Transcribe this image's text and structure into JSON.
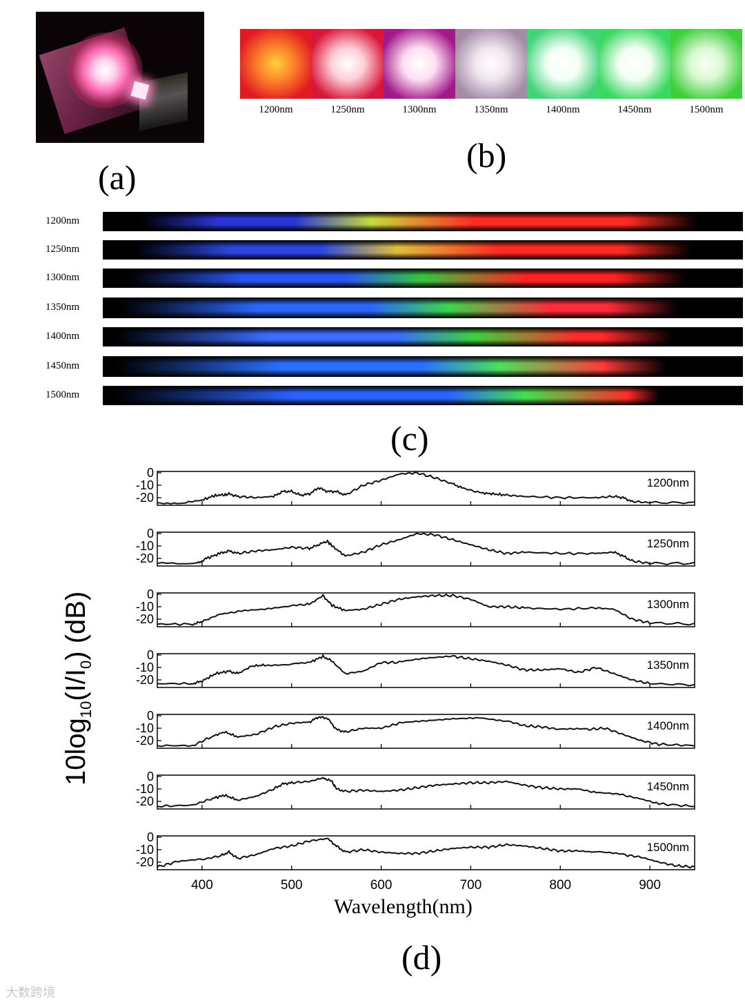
{
  "panel_labels": {
    "a": "(a)",
    "b": "(b)",
    "c": "(c)",
    "d": "(d)"
  },
  "panel_b": {
    "spots": [
      {
        "label": "1200nm",
        "core": "#ffd23a",
        "mid": "#ff8a2a",
        "edge": "#e01a22"
      },
      {
        "label": "1250nm",
        "core": "#ffffff",
        "mid": "#ffd0d8",
        "edge": "#d8163a"
      },
      {
        "label": "1300nm",
        "core": "#ffffff",
        "mid": "#ffe0f2",
        "edge": "#a21a8a"
      },
      {
        "label": "1350nm",
        "core": "#ffffff",
        "mid": "#f1e6ee",
        "edge": "#a48ca8"
      },
      {
        "label": "1400nm",
        "core": "#ffffff",
        "mid": "#f3fff6",
        "edge": "#43d479"
      },
      {
        "label": "1450nm",
        "core": "#ffffff",
        "mid": "#f1fff2",
        "edge": "#3bd861"
      },
      {
        "label": "1500nm",
        "core": "#fafff6",
        "mid": "#d9f8d3",
        "edge": "#3fcf3c"
      }
    ]
  },
  "panel_c": {
    "rows": [
      {
        "label": "1200nm",
        "colors": {
          "blue": "#2a36d8",
          "green": "#c6dc3a",
          "red": "#ff2a22"
        }
      },
      {
        "label": "1250nm",
        "colors": {
          "blue": "#2a46e0",
          "green": "#e0c03a",
          "red": "#ff2a22"
        }
      },
      {
        "label": "1300nm",
        "colors": {
          "blue": "#2a56f0",
          "green": "#35c63a",
          "red": "#ff2222"
        }
      },
      {
        "label": "1350nm",
        "colors": {
          "blue": "#2a66f8",
          "green": "#3dd64a",
          "red": "#ff2a3a"
        }
      },
      {
        "label": "1400nm",
        "colors": {
          "blue": "#3a6cff",
          "green": "#3ad23a",
          "red": "#ff2a2a"
        }
      },
      {
        "label": "1450nm",
        "colors": {
          "blue": "#2a70ff",
          "green": "#4ae05a",
          "red": "#ff3a3a"
        }
      },
      {
        "label": "1500nm",
        "colors": {
          "blue": "#2a62ff",
          "green": "#40e04a",
          "red": "#ff2a2a"
        }
      }
    ]
  },
  "chart_data": {
    "type": "line",
    "xlabel": "Wavelength(nm)",
    "ylabel_main": "10log",
    "ylabel_sub1": "10",
    "ylabel_mid": "(I/I",
    "ylabel_sub2": "0",
    "ylabel_end": ") (dB)",
    "xlim": [
      350,
      950
    ],
    "ylim": [
      -25,
      0
    ],
    "x_ticks": [
      400,
      500,
      600,
      700,
      800,
      900
    ],
    "y_ticks": [
      0,
      -10,
      -20
    ],
    "line_color": "#111111",
    "series": [
      {
        "name": "1200nm",
        "points": [
          [
            350,
            -24
          ],
          [
            380,
            -24
          ],
          [
            400,
            -22
          ],
          [
            415,
            -18
          ],
          [
            425,
            -18
          ],
          [
            430,
            -17
          ],
          [
            440,
            -19
          ],
          [
            460,
            -20
          ],
          [
            480,
            -19
          ],
          [
            490,
            -15
          ],
          [
            500,
            -15
          ],
          [
            510,
            -18
          ],
          [
            520,
            -17
          ],
          [
            530,
            -12
          ],
          [
            540,
            -15
          ],
          [
            550,
            -15
          ],
          [
            560,
            -18
          ],
          [
            580,
            -10
          ],
          [
            600,
            -6
          ],
          [
            620,
            -1
          ],
          [
            640,
            0
          ],
          [
            660,
            -4
          ],
          [
            680,
            -9
          ],
          [
            690,
            -12
          ],
          [
            710,
            -16
          ],
          [
            725,
            -17
          ],
          [
            740,
            -18
          ],
          [
            760,
            -19
          ],
          [
            800,
            -20
          ],
          [
            840,
            -20
          ],
          [
            860,
            -19
          ],
          [
            870,
            -20
          ],
          [
            880,
            -23
          ],
          [
            900,
            -24
          ],
          [
            950,
            -24
          ]
        ]
      },
      {
        "name": "1250nm",
        "points": [
          [
            350,
            -24
          ],
          [
            395,
            -24
          ],
          [
            405,
            -20
          ],
          [
            420,
            -16
          ],
          [
            430,
            -14
          ],
          [
            440,
            -16
          ],
          [
            460,
            -14
          ],
          [
            480,
            -13
          ],
          [
            500,
            -11
          ],
          [
            520,
            -12
          ],
          [
            530,
            -9
          ],
          [
            540,
            -6
          ],
          [
            545,
            -10
          ],
          [
            560,
            -18
          ],
          [
            580,
            -15
          ],
          [
            600,
            -9
          ],
          [
            620,
            -5
          ],
          [
            640,
            0
          ],
          [
            660,
            -1
          ],
          [
            680,
            -5
          ],
          [
            700,
            -9
          ],
          [
            720,
            -13
          ],
          [
            740,
            -16
          ],
          [
            760,
            -15
          ],
          [
            800,
            -16
          ],
          [
            840,
            -16
          ],
          [
            860,
            -15
          ],
          [
            870,
            -18
          ],
          [
            880,
            -22
          ],
          [
            900,
            -24
          ],
          [
            950,
            -24
          ]
        ]
      },
      {
        "name": "1300nm",
        "points": [
          [
            350,
            -24
          ],
          [
            390,
            -24
          ],
          [
            400,
            -22
          ],
          [
            420,
            -16
          ],
          [
            440,
            -14
          ],
          [
            470,
            -12
          ],
          [
            500,
            -9
          ],
          [
            520,
            -8
          ],
          [
            535,
            -1
          ],
          [
            545,
            -9
          ],
          [
            560,
            -13
          ],
          [
            580,
            -12
          ],
          [
            600,
            -8
          ],
          [
            620,
            -4
          ],
          [
            640,
            -2
          ],
          [
            660,
            -1
          ],
          [
            680,
            -1
          ],
          [
            700,
            -4
          ],
          [
            720,
            -10
          ],
          [
            740,
            -10
          ],
          [
            760,
            -11
          ],
          [
            800,
            -12
          ],
          [
            840,
            -11
          ],
          [
            860,
            -12
          ],
          [
            880,
            -20
          ],
          [
            900,
            -23
          ],
          [
            950,
            -24
          ]
        ]
      },
      {
        "name": "1350nm",
        "points": [
          [
            350,
            -23
          ],
          [
            390,
            -23
          ],
          [
            400,
            -21
          ],
          [
            415,
            -15
          ],
          [
            430,
            -13
          ],
          [
            440,
            -15
          ],
          [
            455,
            -9
          ],
          [
            470,
            -8
          ],
          [
            500,
            -7
          ],
          [
            520,
            -6
          ],
          [
            535,
            -1
          ],
          [
            545,
            -5
          ],
          [
            560,
            -15
          ],
          [
            580,
            -13
          ],
          [
            600,
            -6
          ],
          [
            620,
            -6
          ],
          [
            650,
            -3
          ],
          [
            680,
            -1
          ],
          [
            700,
            -3
          ],
          [
            720,
            -5
          ],
          [
            740,
            -8
          ],
          [
            760,
            -12
          ],
          [
            780,
            -12
          ],
          [
            800,
            -11
          ],
          [
            820,
            -14
          ],
          [
            840,
            -10
          ],
          [
            860,
            -15
          ],
          [
            880,
            -20
          ],
          [
            900,
            -23
          ],
          [
            950,
            -24
          ]
        ]
      },
      {
        "name": "1400nm",
        "points": [
          [
            350,
            -24
          ],
          [
            390,
            -24
          ],
          [
            410,
            -17
          ],
          [
            425,
            -13
          ],
          [
            440,
            -17
          ],
          [
            460,
            -15
          ],
          [
            480,
            -9
          ],
          [
            500,
            -6
          ],
          [
            520,
            -5
          ],
          [
            530,
            -1
          ],
          [
            540,
            -2
          ],
          [
            550,
            -11
          ],
          [
            560,
            -13
          ],
          [
            580,
            -10
          ],
          [
            600,
            -10
          ],
          [
            620,
            -6
          ],
          [
            650,
            -4
          ],
          [
            680,
            -2
          ],
          [
            710,
            -1
          ],
          [
            740,
            -4
          ],
          [
            760,
            -8
          ],
          [
            780,
            -9
          ],
          [
            800,
            -11
          ],
          [
            830,
            -11
          ],
          [
            850,
            -10
          ],
          [
            870,
            -15
          ],
          [
            890,
            -20
          ],
          [
            910,
            -23
          ],
          [
            950,
            -24
          ]
        ]
      },
      {
        "name": "1450nm",
        "points": [
          [
            350,
            -24
          ],
          [
            390,
            -23
          ],
          [
            410,
            -18
          ],
          [
            425,
            -15
          ],
          [
            440,
            -19
          ],
          [
            460,
            -16
          ],
          [
            480,
            -10
          ],
          [
            490,
            -6
          ],
          [
            500,
            -5
          ],
          [
            520,
            -4
          ],
          [
            535,
            -1
          ],
          [
            545,
            -4
          ],
          [
            550,
            -10
          ],
          [
            560,
            -12
          ],
          [
            580,
            -11
          ],
          [
            600,
            -12
          ],
          [
            620,
            -11
          ],
          [
            640,
            -9
          ],
          [
            660,
            -7
          ],
          [
            680,
            -6
          ],
          [
            700,
            -5
          ],
          [
            720,
            -5
          ],
          [
            740,
            -4
          ],
          [
            760,
            -7
          ],
          [
            780,
            -9
          ],
          [
            800,
            -10
          ],
          [
            820,
            -10
          ],
          [
            840,
            -13
          ],
          [
            870,
            -15
          ],
          [
            890,
            -18
          ],
          [
            910,
            -22
          ],
          [
            950,
            -24
          ]
        ]
      },
      {
        "name": "1500nm",
        "points": [
          [
            350,
            -24
          ],
          [
            370,
            -20
          ],
          [
            400,
            -18
          ],
          [
            420,
            -15
          ],
          [
            430,
            -12
          ],
          [
            440,
            -17
          ],
          [
            460,
            -14
          ],
          [
            480,
            -9
          ],
          [
            500,
            -7
          ],
          [
            520,
            -3
          ],
          [
            540,
            -1
          ],
          [
            550,
            -7
          ],
          [
            560,
            -12
          ],
          [
            580,
            -10
          ],
          [
            600,
            -12
          ],
          [
            620,
            -13
          ],
          [
            640,
            -13
          ],
          [
            660,
            -11
          ],
          [
            680,
            -9
          ],
          [
            700,
            -8
          ],
          [
            720,
            -8
          ],
          [
            740,
            -6
          ],
          [
            760,
            -7
          ],
          [
            780,
            -9
          ],
          [
            800,
            -11
          ],
          [
            820,
            -11
          ],
          [
            840,
            -12
          ],
          [
            870,
            -14
          ],
          [
            890,
            -16
          ],
          [
            910,
            -20
          ],
          [
            930,
            -23
          ],
          [
            950,
            -24
          ]
        ]
      }
    ]
  },
  "watermark": "大数跨境"
}
